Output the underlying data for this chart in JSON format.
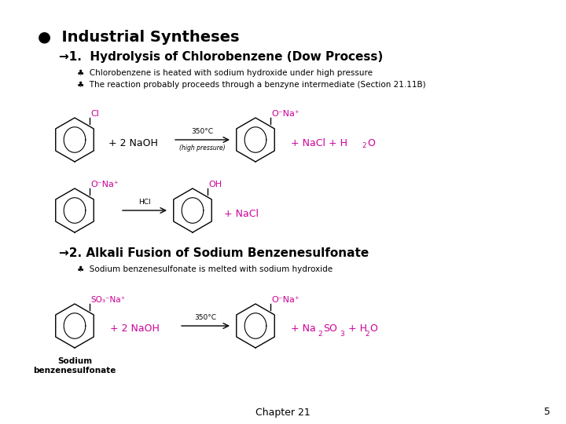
{
  "background_color": "#ffffff",
  "title_bullet": "●  Industrial Syntheses",
  "title_fontsize": 14,
  "section1_header": "→1.  Hydrolysis of Chlorobenzene (Dow Process)",
  "section1_header_fontsize": 11,
  "bullet1_text": "♣  Chlorobenzene is heated with sodium hydroxide under high pressure",
  "bullet2_text": "♣  The reaction probably proceeds through a benzyne intermediate (Section 21.11B)",
  "bullet_fontsize": 7.5,
  "section2_header": "→2. Alkali Fusion of Sodium Benzenesulfonate",
  "section2_header_fontsize": 11,
  "bullet3_text": "♣  Sodium benzenesulfonate is melted with sodium hydroxide",
  "footer_chapter": "Chapter 21",
  "footer_page": "5",
  "magenta": "#cc0099",
  "black": "#000000"
}
